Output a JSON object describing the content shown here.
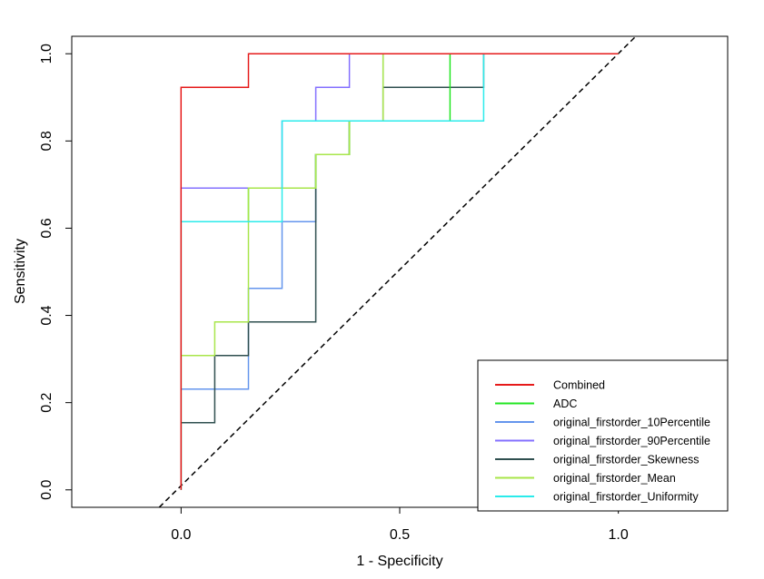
{
  "chart_data": {
    "type": "line",
    "title": "",
    "xlabel": "1 - Specificity",
    "ylabel": "Sensitivity",
    "xlim": [
      -0.25,
      1.25
    ],
    "ylim": [
      -0.04,
      1.04
    ],
    "x_ticks": [
      {
        "value": 0.0,
        "label": "0.0"
      },
      {
        "value": 0.5,
        "label": "0.5"
      },
      {
        "value": 1.0,
        "label": "1.0"
      }
    ],
    "y_ticks": [
      {
        "value": 0.0,
        "label": "0.0"
      },
      {
        "value": 0.2,
        "label": "0.2"
      },
      {
        "value": 0.4,
        "label": "0.4"
      },
      {
        "value": 0.6,
        "label": "0.6"
      },
      {
        "value": 0.8,
        "label": "0.8"
      },
      {
        "value": 1.0,
        "label": "1.0"
      }
    ],
    "reference_line": {
      "x": [
        -0.05,
        1.04
      ],
      "y": [
        -0.04,
        1.04
      ],
      "style": "dashed",
      "color": "#000000"
    },
    "legend_position": "bottom-right",
    "series": [
      {
        "name": "original_firstorder_10Percentile",
        "color": "#6495ED",
        "x": [
          0,
          0,
          0.154,
          0.154,
          0.231,
          0.231,
          0.308,
          0.308,
          0.385,
          0.385,
          0.462,
          0.462,
          0.692,
          0.692,
          1.0
        ],
        "y": [
          0,
          0.231,
          0.231,
          0.462,
          0.462,
          0.615,
          0.615,
          0.769,
          0.769,
          0.846,
          0.846,
          1.0,
          1.0,
          1.0,
          1.0
        ]
      },
      {
        "name": "original_firstorder_90Percentile",
        "color": "#8470FF",
        "x": [
          0,
          0,
          0.154,
          0.154,
          0.231,
          0.231,
          0.308,
          0.308,
          0.385,
          0.385,
          1.0
        ],
        "y": [
          0,
          0.692,
          0.692,
          0.692,
          0.692,
          0.846,
          0.846,
          0.923,
          0.923,
          1.0,
          1.0
        ]
      },
      {
        "name": "original_firstorder_Skewness",
        "color": "#2F4F4F",
        "x": [
          0,
          0,
          0.077,
          0.077,
          0.154,
          0.154,
          0.308,
          0.308,
          0.385,
          0.385,
          0.462,
          0.462,
          0.692,
          0.692,
          1.0
        ],
        "y": [
          0,
          0.154,
          0.154,
          0.308,
          0.308,
          0.385,
          0.385,
          0.769,
          0.769,
          0.846,
          0.846,
          0.923,
          0.923,
          1.0,
          1.0
        ]
      },
      {
        "name": "ADC",
        "color": "#22E622",
        "x": [
          0,
          0,
          0.154,
          0.154,
          0.308,
          0.308,
          0.385,
          0.385,
          0.462,
          0.462,
          0.615,
          0.615,
          1.0
        ],
        "y": [
          0,
          0.615,
          0.615,
          0.692,
          0.692,
          0.769,
          0.769,
          0.846,
          0.846,
          0.846,
          0.846,
          1.0,
          1.0
        ]
      },
      {
        "name": "original_firstorder_Mean",
        "color": "#A8E64A",
        "x": [
          0,
          0,
          0.077,
          0.077,
          0.154,
          0.154,
          0.308,
          0.308,
          0.385,
          0.385,
          0.462,
          0.462,
          1.0
        ],
        "y": [
          0,
          0.308,
          0.308,
          0.385,
          0.385,
          0.692,
          0.692,
          0.769,
          0.769,
          0.846,
          0.846,
          1.0,
          1.0
        ]
      },
      {
        "name": "original_firstorder_Uniformity",
        "color": "#2BEBEB",
        "x": [
          0,
          0,
          0.231,
          0.231,
          0.692,
          0.692,
          1.0
        ],
        "y": [
          0,
          0.615,
          0.615,
          0.846,
          0.846,
          1.0,
          1.0
        ]
      },
      {
        "name": "Combined",
        "color": "#E61A1A",
        "x": [
          0,
          0,
          0.154,
          0.154,
          1.0
        ],
        "y": [
          0,
          0.923,
          0.923,
          1.0,
          1.0
        ]
      }
    ],
    "legend": [
      {
        "label": "Combined",
        "color": "#E61A1A"
      },
      {
        "label": "ADC",
        "color": "#22E622"
      },
      {
        "label": "original_firstorder_10Percentile",
        "color": "#6495ED"
      },
      {
        "label": "original_firstorder_90Percentile",
        "color": "#8470FF"
      },
      {
        "label": "original_firstorder_Skewness",
        "color": "#2F4F4F"
      },
      {
        "label": "original_firstorder_Mean",
        "color": "#A8E64A"
      },
      {
        "label": "original_firstorder_Uniformity",
        "color": "#2BEBEB"
      }
    ]
  }
}
